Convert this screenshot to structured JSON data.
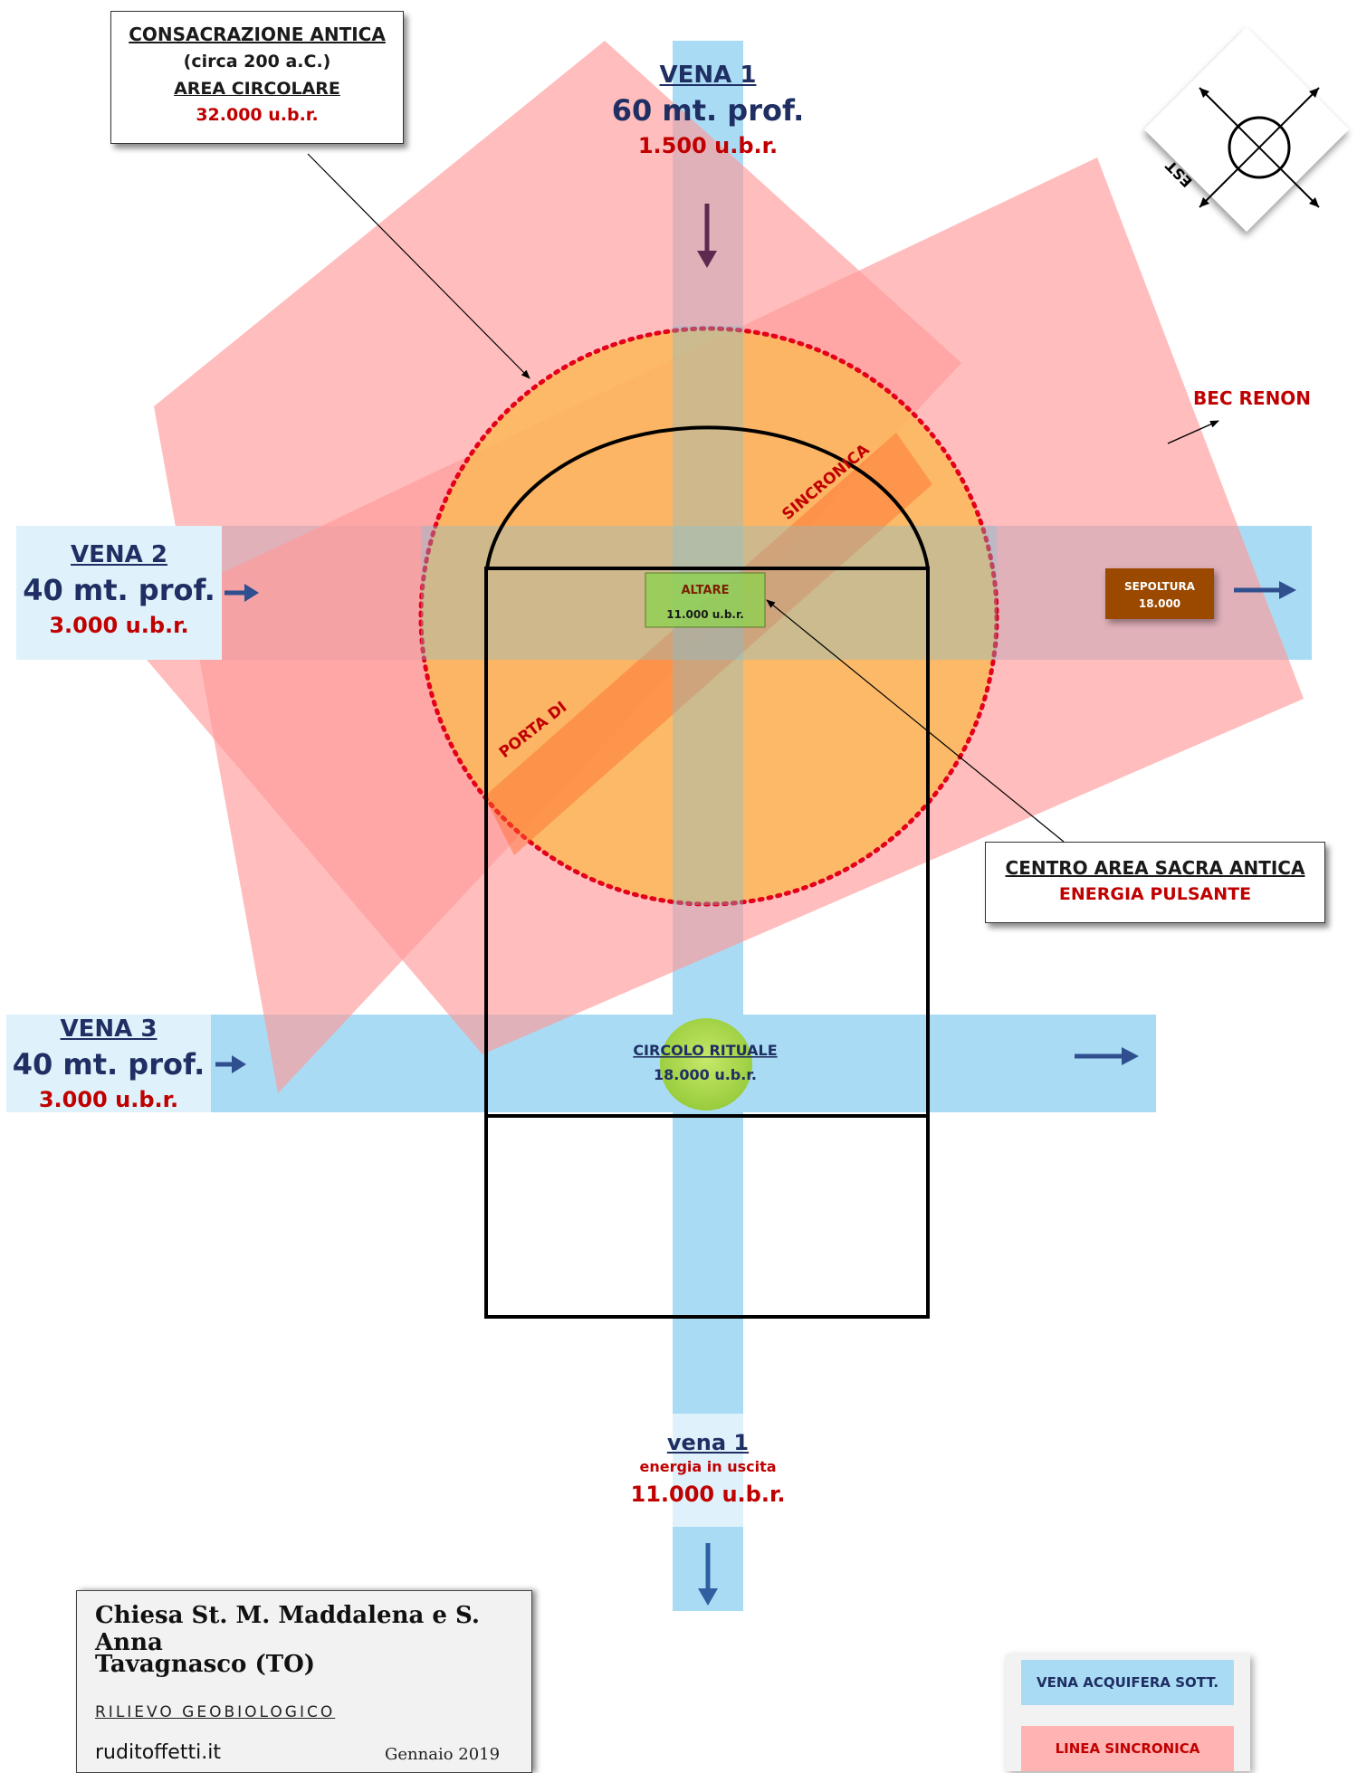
{
  "colors": {
    "vein": "#a9dcf4",
    "vein_label_bg": "#dff2fb",
    "synchronic": "#ff9999",
    "circle_fill": "#fbb94e",
    "circle_stroke": "#e4001b",
    "altar": "#8fd14f",
    "ritual_circle": "#a8d84a",
    "burial": "#9c4a06",
    "arrow": "#2f4f8f",
    "label_red": "#c00000",
    "label_navy": "#1f2f63"
  },
  "consecration_box": {
    "line1": "CONSACRAZIONE ANTICA",
    "line2": "(circa 200 a.C.)",
    "line3": "AREA CIRCOLARE",
    "line4": "32.000 u.b.r."
  },
  "vena1_top": {
    "title": "VENA 1",
    "depth": "60 mt. prof.",
    "value": "1.500 u.b.r."
  },
  "vena2": {
    "title": "VENA 2",
    "depth": "40 mt. prof.",
    "value": "3.000 u.b.r."
  },
  "vena3": {
    "title": "VENA 3",
    "depth": "40 mt. prof.",
    "value": "3.000 u.b.r."
  },
  "vena1_bottom": {
    "title": "vena 1",
    "subtitle": "energia in uscita",
    "value": "11.000 u.b.r."
  },
  "compass": {
    "label": "EST",
    "icon": "compass-rose-icon"
  },
  "bec_renon": "BEC RENON",
  "sincronica_label": "SINCRONICA",
  "porta_label": "PORTA DI",
  "altar": {
    "label": "ALTARE",
    "value": "11.000 u.b.r."
  },
  "burial": {
    "label": "SEPOLTURA",
    "value": "18.000"
  },
  "ritual_circle": {
    "label": "CIRCOLO RITUALE",
    "value": "18.000 u.b.r."
  },
  "center_box": {
    "line1": "CENTRO AREA SACRA ANTICA",
    "line2": "ENERGIA PULSANTE"
  },
  "title_block": {
    "line1": "Chiesa St. M. Maddalena e S. Anna",
    "line2": "Tavagnasco (TO)",
    "line3": "RILIEVO GEOBIOLOGICO",
    "site": "ruditoffetti.it",
    "date": "Gennaio 2019"
  },
  "legend": {
    "vein": "VENA ACQUIFERA SOTT.",
    "sync": "LINEA SINCRONICA"
  }
}
